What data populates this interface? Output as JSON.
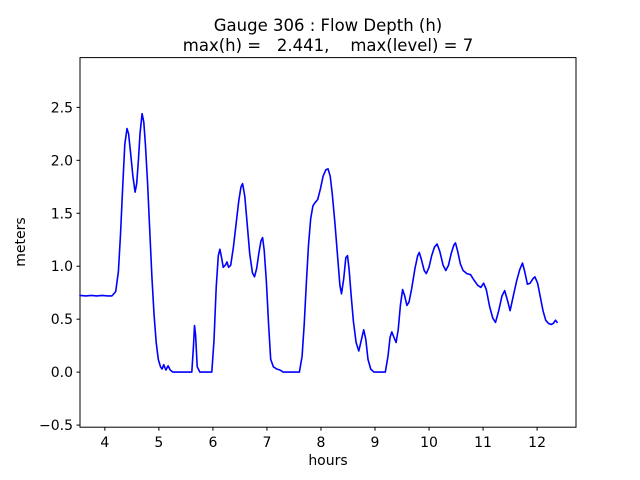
{
  "chart_data": {
    "type": "line",
    "title": "Gauge 306 : Flow Depth (h)",
    "subtitle": "max(h) =   2.441,    max(level) = 7",
    "xlabel": "hours",
    "ylabel": "meters",
    "xlim": [
      3.54,
      12.72
    ],
    "ylim": [
      -0.52,
      2.97
    ],
    "x_ticks": [
      4,
      5,
      6,
      7,
      8,
      9,
      10,
      11,
      12
    ],
    "x_tick_labels": [
      "4",
      "5",
      "6",
      "7",
      "8",
      "9",
      "10",
      "11",
      "12"
    ],
    "y_ticks": [
      -0.5,
      0.0,
      0.5,
      1.0,
      1.5,
      2.0,
      2.5
    ],
    "y_tick_labels": [
      "−0.5",
      "0.0",
      "0.5",
      "1.0",
      "1.5",
      "2.0",
      "2.5"
    ],
    "grid": false,
    "legend": null,
    "line_color": "#0000ff",
    "background_color": "#ffffff",
    "max_h": 2.441,
    "max_level": 7,
    "series": [
      {
        "name": "flow depth (h)",
        "points": [
          [
            3.54,
            0.725
          ],
          [
            3.65,
            0.72
          ],
          [
            3.75,
            0.725
          ],
          [
            3.85,
            0.72
          ],
          [
            3.95,
            0.725
          ],
          [
            4.05,
            0.72
          ],
          [
            4.13,
            0.72
          ],
          [
            4.2,
            0.76
          ],
          [
            4.25,
            0.95
          ],
          [
            4.29,
            1.3
          ],
          [
            4.33,
            1.75
          ],
          [
            4.37,
            2.15
          ],
          [
            4.41,
            2.3
          ],
          [
            4.44,
            2.25
          ],
          [
            4.48,
            2.05
          ],
          [
            4.52,
            1.85
          ],
          [
            4.56,
            1.7
          ],
          [
            4.59,
            1.78
          ],
          [
            4.62,
            2.0
          ],
          [
            4.65,
            2.25
          ],
          [
            4.69,
            2.44
          ],
          [
            4.72,
            2.36
          ],
          [
            4.75,
            2.15
          ],
          [
            4.79,
            1.8
          ],
          [
            4.83,
            1.35
          ],
          [
            4.87,
            0.9
          ],
          [
            4.91,
            0.55
          ],
          [
            4.95,
            0.28
          ],
          [
            4.99,
            0.12
          ],
          [
            5.03,
            0.05
          ],
          [
            5.06,
            0.03
          ],
          [
            5.09,
            0.07
          ],
          [
            5.13,
            0.02
          ],
          [
            5.17,
            0.06
          ],
          [
            5.21,
            0.02
          ],
          [
            5.26,
            0.0
          ],
          [
            5.35,
            0.0
          ],
          [
            5.45,
            0.0
          ],
          [
            5.55,
            0.0
          ],
          [
            5.61,
            0.0
          ],
          [
            5.64,
            0.25
          ],
          [
            5.66,
            0.44
          ],
          [
            5.68,
            0.35
          ],
          [
            5.71,
            0.05
          ],
          [
            5.76,
            0.0
          ],
          [
            5.84,
            0.0
          ],
          [
            5.92,
            0.0
          ],
          [
            5.98,
            0.0
          ],
          [
            6.02,
            0.3
          ],
          [
            6.06,
            0.8
          ],
          [
            6.1,
            1.1
          ],
          [
            6.13,
            1.16
          ],
          [
            6.16,
            1.08
          ],
          [
            6.19,
            0.99
          ],
          [
            6.23,
            1.01
          ],
          [
            6.26,
            1.04
          ],
          [
            6.29,
            0.99
          ],
          [
            6.33,
            1.01
          ],
          [
            6.38,
            1.18
          ],
          [
            6.43,
            1.4
          ],
          [
            6.48,
            1.62
          ],
          [
            6.52,
            1.75
          ],
          [
            6.55,
            1.78
          ],
          [
            6.59,
            1.66
          ],
          [
            6.63,
            1.42
          ],
          [
            6.68,
            1.12
          ],
          [
            6.73,
            0.94
          ],
          [
            6.77,
            0.9
          ],
          [
            6.81,
            0.98
          ],
          [
            6.85,
            1.12
          ],
          [
            6.89,
            1.24
          ],
          [
            6.92,
            1.27
          ],
          [
            6.95,
            1.15
          ],
          [
            6.99,
            0.85
          ],
          [
            7.03,
            0.45
          ],
          [
            7.07,
            0.12
          ],
          [
            7.12,
            0.05
          ],
          [
            7.18,
            0.03
          ],
          [
            7.24,
            0.02
          ],
          [
            7.3,
            0.0
          ],
          [
            7.4,
            0.0
          ],
          [
            7.5,
            0.0
          ],
          [
            7.6,
            0.0
          ],
          [
            7.65,
            0.15
          ],
          [
            7.69,
            0.45
          ],
          [
            7.73,
            0.85
          ],
          [
            7.77,
            1.2
          ],
          [
            7.81,
            1.45
          ],
          [
            7.85,
            1.57
          ],
          [
            7.89,
            1.6
          ],
          [
            7.94,
            1.63
          ],
          [
            7.99,
            1.73
          ],
          [
            8.04,
            1.85
          ],
          [
            8.09,
            1.91
          ],
          [
            8.13,
            1.92
          ],
          [
            8.17,
            1.85
          ],
          [
            8.21,
            1.68
          ],
          [
            8.26,
            1.4
          ],
          [
            8.31,
            1.08
          ],
          [
            8.35,
            0.82
          ],
          [
            8.38,
            0.74
          ],
          [
            8.42,
            0.88
          ],
          [
            8.46,
            1.08
          ],
          [
            8.49,
            1.1
          ],
          [
            8.52,
            0.97
          ],
          [
            8.56,
            0.72
          ],
          [
            8.6,
            0.48
          ],
          [
            8.65,
            0.28
          ],
          [
            8.7,
            0.2
          ],
          [
            8.75,
            0.31
          ],
          [
            8.79,
            0.4
          ],
          [
            8.83,
            0.31
          ],
          [
            8.87,
            0.12
          ],
          [
            8.92,
            0.03
          ],
          [
            8.98,
            0.0
          ],
          [
            9.06,
            0.0
          ],
          [
            9.13,
            0.0
          ],
          [
            9.19,
            0.0
          ],
          [
            9.24,
            0.15
          ],
          [
            9.28,
            0.33
          ],
          [
            9.31,
            0.38
          ],
          [
            9.35,
            0.33
          ],
          [
            9.39,
            0.28
          ],
          [
            9.43,
            0.4
          ],
          [
            9.47,
            0.63
          ],
          [
            9.51,
            0.78
          ],
          [
            9.55,
            0.72
          ],
          [
            9.59,
            0.63
          ],
          [
            9.63,
            0.66
          ],
          [
            9.68,
            0.79
          ],
          [
            9.74,
            0.98
          ],
          [
            9.79,
            1.1
          ],
          [
            9.82,
            1.13
          ],
          [
            9.86,
            1.06
          ],
          [
            9.91,
            0.96
          ],
          [
            9.95,
            0.93
          ],
          [
            10.0,
            0.99
          ],
          [
            10.05,
            1.1
          ],
          [
            10.1,
            1.18
          ],
          [
            10.15,
            1.21
          ],
          [
            10.2,
            1.14
          ],
          [
            10.26,
            1.01
          ],
          [
            10.31,
            0.96
          ],
          [
            10.36,
            1.01
          ],
          [
            10.41,
            1.12
          ],
          [
            10.46,
            1.2
          ],
          [
            10.49,
            1.22
          ],
          [
            10.53,
            1.14
          ],
          [
            10.58,
            1.02
          ],
          [
            10.63,
            0.96
          ],
          [
            10.7,
            0.93
          ],
          [
            10.77,
            0.92
          ],
          [
            10.83,
            0.87
          ],
          [
            10.9,
            0.82
          ],
          [
            10.96,
            0.8
          ],
          [
            11.01,
            0.84
          ],
          [
            11.06,
            0.78
          ],
          [
            11.12,
            0.62
          ],
          [
            11.18,
            0.51
          ],
          [
            11.23,
            0.47
          ],
          [
            11.29,
            0.58
          ],
          [
            11.35,
            0.72
          ],
          [
            11.4,
            0.77
          ],
          [
            11.45,
            0.68
          ],
          [
            11.5,
            0.58
          ],
          [
            11.56,
            0.72
          ],
          [
            11.62,
            0.86
          ],
          [
            11.68,
            0.97
          ],
          [
            11.73,
            1.03
          ],
          [
            11.77,
            0.95
          ],
          [
            11.82,
            0.83
          ],
          [
            11.87,
            0.84
          ],
          [
            11.92,
            0.88
          ],
          [
            11.96,
            0.9
          ],
          [
            12.01,
            0.84
          ],
          [
            12.06,
            0.71
          ],
          [
            12.11,
            0.58
          ],
          [
            12.16,
            0.49
          ],
          [
            12.21,
            0.46
          ],
          [
            12.26,
            0.45
          ],
          [
            12.3,
            0.46
          ],
          [
            12.34,
            0.49
          ],
          [
            12.37,
            0.47
          ]
        ]
      }
    ]
  }
}
